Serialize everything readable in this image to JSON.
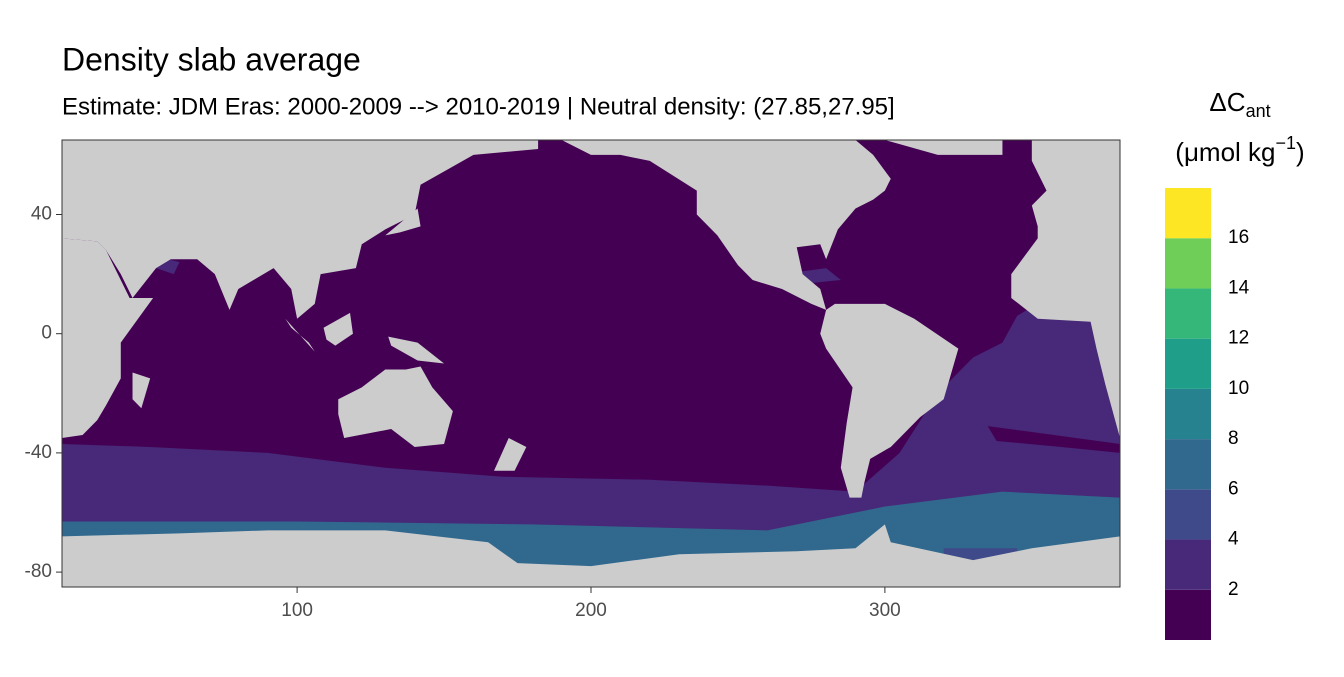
{
  "chart_data": {
    "type": "map",
    "title": "Density slab average",
    "subtitle": "Estimate: JDM Eras: 2000-2009 --> 2010-2019 | Neutral density: (27.85,27.95]",
    "xlim": [
      20,
      380
    ],
    "xticks": [
      100,
      200,
      300
    ],
    "ylim": [
      -85,
      65
    ],
    "yticks": [
      40,
      0,
      -40,
      -80
    ],
    "land_color": "#cccccc",
    "legend": {
      "title": "ΔC",
      "title_sub": "ant",
      "unit_open": "(μmol kg",
      "unit_sup": "−1",
      "unit_close": ")",
      "bins": [
        0,
        2,
        4,
        6,
        8,
        10,
        12,
        14,
        16,
        18
      ],
      "colors": [
        "#440154",
        "#482878",
        "#3e4a89",
        "#31688e",
        "#26828e",
        "#1f9e89",
        "#35b779",
        "#6ece58",
        "#fde725"
      ]
    }
  }
}
